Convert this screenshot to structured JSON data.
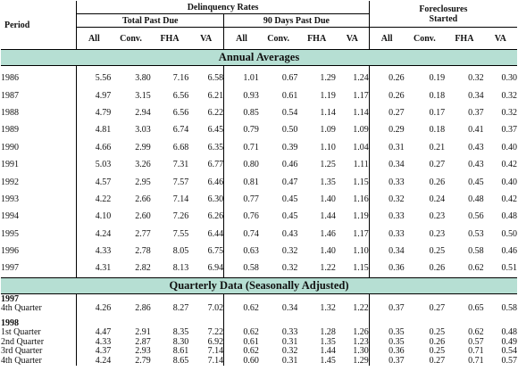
{
  "header": {
    "period": "Period",
    "delinquency_rates": "Delinquency Rates",
    "total_past_due": "Total Past Due",
    "ninety_days_past_due": "90 Days Past Due",
    "foreclosures_started_line1": "Foreclosures",
    "foreclosures_started_line2": "Started",
    "columns": [
      "All",
      "Conv.",
      "FHA",
      "VA",
      "All",
      "Conv.",
      "FHA",
      "VA",
      "All",
      "Conv.",
      "FHA",
      "VA"
    ]
  },
  "annual": {
    "title": "Annual Averages",
    "rows": [
      {
        "period": "1986",
        "values": [
          "5.56",
          "3.80",
          "7.16",
          "6.58",
          "1.01",
          "0.67",
          "1.29",
          "1.24",
          "0.26",
          "0.19",
          "0.32",
          "0.30"
        ]
      },
      {
        "period": "1987",
        "values": [
          "4.97",
          "3.15",
          "6.56",
          "6.21",
          "0.93",
          "0.61",
          "1.19",
          "1.17",
          "0.26",
          "0.18",
          "0.34",
          "0.32"
        ]
      },
      {
        "period": "1988",
        "values": [
          "4.79",
          "2.94",
          "6.56",
          "6.22",
          "0.85",
          "0.54",
          "1.14",
          "1.14",
          "0.27",
          "0.17",
          "0.37",
          "0.32"
        ]
      },
      {
        "period": "1989",
        "values": [
          "4.81",
          "3.03",
          "6.74",
          "6.45",
          "0.79",
          "0.50",
          "1.09",
          "1.09",
          "0.29",
          "0.18",
          "0.41",
          "0.37"
        ]
      },
      {
        "period": "1990",
        "values": [
          "4.66",
          "2.99",
          "6.68",
          "6.35",
          "0.71",
          "0.39",
          "1.10",
          "1.04",
          "0.31",
          "0.21",
          "0.43",
          "0.40"
        ]
      },
      {
        "period": "1991",
        "values": [
          "5.03",
          "3.26",
          "7.31",
          "6.77",
          "0.80",
          "0.46",
          "1.25",
          "1.11",
          "0.34",
          "0.27",
          "0.43",
          "0.42"
        ]
      },
      {
        "period": "1992",
        "values": [
          "4.57",
          "2.95",
          "7.57",
          "6.46",
          "0.81",
          "0.47",
          "1.35",
          "1.15",
          "0.33",
          "0.26",
          "0.45",
          "0.40"
        ]
      },
      {
        "period": "1993",
        "values": [
          "4.22",
          "2.66",
          "7.14",
          "6.30",
          "0.77",
          "0.45",
          "1.40",
          "1.16",
          "0.32",
          "0.24",
          "0.48",
          "0.42"
        ]
      },
      {
        "period": "1994",
        "values": [
          "4.10",
          "2.60",
          "7.26",
          "6.26",
          "0.76",
          "0.45",
          "1.44",
          "1.19",
          "0.33",
          "0.23",
          "0.56",
          "0.48"
        ]
      },
      {
        "period": "1995",
        "values": [
          "4.24",
          "2.77",
          "7.55",
          "6.44",
          "0.74",
          "0.43",
          "1.46",
          "1.17",
          "0.33",
          "0.23",
          "0.53",
          "0.50"
        ]
      },
      {
        "period": "1996",
        "values": [
          "4.33",
          "2.78",
          "8.05",
          "6.75",
          "0.63",
          "0.32",
          "1.40",
          "1.10",
          "0.34",
          "0.25",
          "0.58",
          "0.46"
        ]
      },
      {
        "period": "1997",
        "values": [
          "4.31",
          "2.82",
          "8.13",
          "6.94",
          "0.58",
          "0.32",
          "1.22",
          "1.15",
          "0.36",
          "0.26",
          "0.62",
          "0.51"
        ]
      }
    ]
  },
  "quarterly": {
    "title": "Quarterly Data (Seasonally Adjusted)",
    "year_1997": "1997",
    "q4_1997": {
      "period": "4th Quarter",
      "values": [
        "4.26",
        "2.86",
        "8.27",
        "7.02",
        "0.62",
        "0.34",
        "1.32",
        "1.22",
        "0.37",
        "0.27",
        "0.65",
        "0.58"
      ]
    },
    "year_1998": "1998",
    "rows_1998": [
      {
        "period": "1st Quarter",
        "values": [
          "4.47",
          "2.91",
          "8.35",
          "7.22",
          "0.62",
          "0.33",
          "1.28",
          "1.26",
          "0.35",
          "0.25",
          "0.62",
          "0.48"
        ]
      },
      {
        "period": "2nd Quarter",
        "values": [
          "4.33",
          "2.87",
          "8.30",
          "6.92",
          "0.61",
          "0.31",
          "1.35",
          "1.23",
          "0.35",
          "0.26",
          "0.57",
          "0.49"
        ]
      },
      {
        "period": "3rd Quarter",
        "values": [
          "4.37",
          "2.93",
          "8.61",
          "7.14",
          "0.62",
          "0.32",
          "1.44",
          "1.30",
          "0.36",
          "0.25",
          "0.71",
          "0.54"
        ]
      },
      {
        "period": "4th Quarter",
        "values": [
          "4.24",
          "2.79",
          "8.65",
          "7.14",
          "0.60",
          "0.31",
          "1.45",
          "1.29",
          "0.37",
          "0.27",
          "0.71",
          "0.57"
        ]
      }
    ]
  },
  "colors": {
    "section_band": "#b6dfd3",
    "rule": "#000000"
  }
}
